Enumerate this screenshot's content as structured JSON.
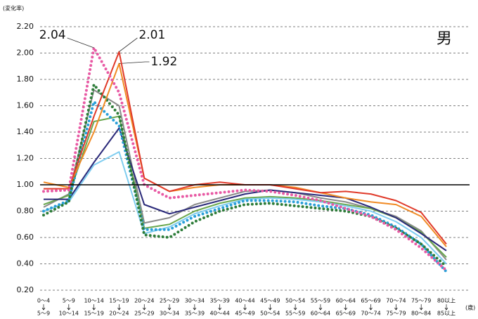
{
  "chart_data": {
    "type": "line",
    "title": "男",
    "y_label": "(変化率)",
    "x_label": "(歳)",
    "categories": [
      [
        "0～4",
        "5～9"
      ],
      [
        "5～9",
        "10～14"
      ],
      [
        "10～14",
        "15～19"
      ],
      [
        "15～19",
        "20～24"
      ],
      [
        "20～24",
        "25～29"
      ],
      [
        "25～29",
        "30～34"
      ],
      [
        "30～34",
        "35～39"
      ],
      [
        "35～39",
        "40～44"
      ],
      [
        "40～44",
        "45～49"
      ],
      [
        "45～49",
        "50～54"
      ],
      [
        "50～54",
        "55～59"
      ],
      [
        "55～59",
        "60～64"
      ],
      [
        "60～64",
        "65～69"
      ],
      [
        "65～69",
        "70～74"
      ],
      [
        "70～74",
        "75～79"
      ],
      [
        "75～79",
        "80～84"
      ],
      [
        "80以上",
        "85以上"
      ]
    ],
    "ylim": [
      0.2,
      2.2
    ],
    "yticks": [
      {
        "value": 0.2,
        "label": "0.20"
      },
      {
        "value": 0.4,
        "label": "0.40"
      },
      {
        "value": 0.6,
        "label": "0.60"
      },
      {
        "value": 0.8,
        "label": "0.80"
      },
      {
        "value": 1.0,
        "label": "1.00"
      },
      {
        "value": 1.2,
        "label": "1.20"
      },
      {
        "value": 1.4,
        "label": "1.40"
      },
      {
        "value": 1.6,
        "label": "1.60"
      },
      {
        "value": 1.8,
        "label": "1.80"
      },
      {
        "value": 2.0,
        "label": "2.00"
      },
      {
        "value": 2.2,
        "label": "2.20"
      }
    ],
    "grid": true,
    "reference_line": 1.0,
    "series": [
      {
        "color": "#8a8a8a",
        "style": "solid",
        "values": [
          0.83,
          0.93,
          1.72,
          1.6,
          0.71,
          0.75,
          0.85,
          0.9,
          0.95,
          0.96,
          0.94,
          0.9,
          0.87,
          0.82,
          0.76,
          0.65,
          0.43
        ]
      },
      {
        "color": "#6aa84f",
        "style": "solid",
        "values": [
          0.85,
          0.92,
          1.48,
          1.52,
          0.67,
          0.7,
          0.8,
          0.86,
          0.9,
          0.91,
          0.9,
          0.88,
          0.85,
          0.82,
          0.75,
          0.64,
          0.45
        ]
      },
      {
        "color": "#7fcdf0",
        "style": "solid",
        "values": [
          0.8,
          0.87,
          1.15,
          1.25,
          0.63,
          0.68,
          0.78,
          0.84,
          0.89,
          0.9,
          0.89,
          0.87,
          0.84,
          0.8,
          0.72,
          0.6,
          0.4
        ]
      },
      {
        "color": "#2b2a7a",
        "style": "solid",
        "values": [
          0.89,
          0.89,
          1.17,
          1.43,
          0.85,
          0.78,
          0.83,
          0.88,
          0.93,
          0.96,
          0.94,
          0.92,
          0.9,
          0.83,
          0.75,
          0.63,
          0.5
        ]
      },
      {
        "color": "#2a9fd8",
        "style": "dotted",
        "values": [
          0.8,
          0.88,
          1.63,
          1.45,
          0.66,
          0.66,
          0.76,
          0.82,
          0.88,
          0.88,
          0.87,
          0.84,
          0.82,
          0.77,
          0.68,
          0.55,
          0.34
        ]
      },
      {
        "color": "#2e7d3a",
        "style": "dotted",
        "values": [
          0.77,
          0.87,
          1.76,
          1.53,
          0.62,
          0.6,
          0.72,
          0.8,
          0.85,
          0.86,
          0.84,
          0.82,
          0.8,
          0.76,
          0.67,
          0.55,
          0.38
        ]
      },
      {
        "color": "#f08a24",
        "style": "solid",
        "values": [
          1.02,
          0.98,
          1.4,
          1.92,
          1.05,
          0.95,
          0.98,
          1.0,
          1.0,
          1.0,
          0.98,
          0.94,
          0.9,
          0.87,
          0.85,
          0.76,
          0.53
        ],
        "value_labels": [
          null,
          null,
          null,
          "1.92",
          null,
          null,
          null,
          null,
          null,
          null,
          null,
          null,
          null,
          null,
          null,
          null,
          null
        ]
      },
      {
        "color": "#e03a2a",
        "style": "solid",
        "values": [
          0.97,
          0.97,
          1.52,
          2.01,
          1.05,
          0.95,
          1.0,
          1.02,
          1.0,
          1.0,
          0.97,
          0.94,
          0.95,
          0.93,
          0.88,
          0.79,
          0.55
        ],
        "value_labels": [
          null,
          null,
          null,
          "2.01",
          null,
          null,
          null,
          null,
          null,
          null,
          null,
          null,
          null,
          null,
          null,
          null,
          null
        ]
      },
      {
        "color": "#e85aa4",
        "style": "dotted",
        "values": [
          0.95,
          0.96,
          2.04,
          1.7,
          1.0,
          0.9,
          0.92,
          0.94,
          0.96,
          0.95,
          0.92,
          0.88,
          0.82,
          0.76,
          0.66,
          0.52,
          0.35
        ],
        "value_labels": [
          null,
          null,
          "2.04",
          null,
          null,
          null,
          null,
          null,
          null,
          null,
          null,
          null,
          null,
          null,
          null,
          null,
          null
        ]
      }
    ]
  }
}
